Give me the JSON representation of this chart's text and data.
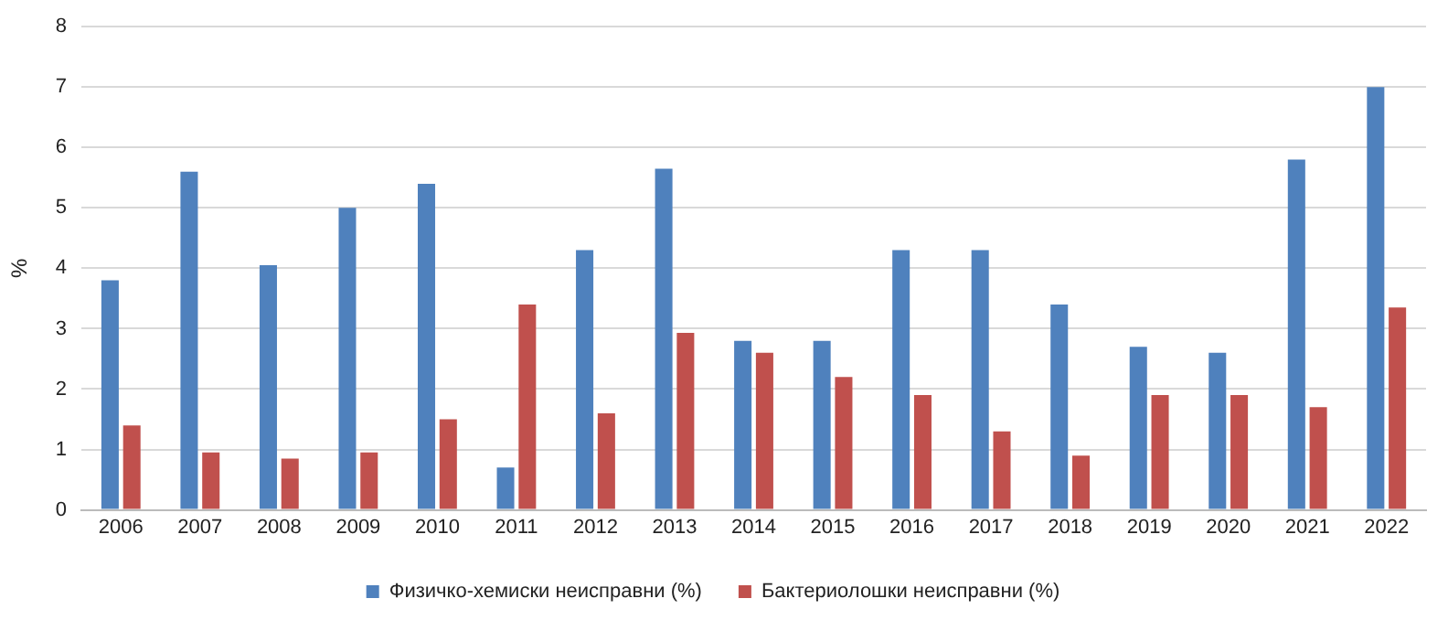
{
  "chart_data": {
    "type": "bar",
    "ylabel": "%",
    "categories": [
      "2006",
      "2007",
      "2008",
      "2009",
      "2010",
      "2011",
      "2012",
      "2013",
      "2014",
      "2015",
      "2016",
      "2017",
      "2018",
      "2019",
      "2020",
      "2021",
      "2022"
    ],
    "series": [
      {
        "name": "Физичко-хемиски неисправни (%)",
        "color": "#4f81bd",
        "values": [
          3.8,
          5.6,
          4.05,
          5.0,
          5.4,
          0.7,
          4.3,
          5.65,
          2.8,
          2.8,
          4.3,
          4.3,
          3.4,
          2.7,
          2.6,
          5.8,
          7.0
        ]
      },
      {
        "name": "Бактериолошки неисправни (%)",
        "color": "#c0504d",
        "values": [
          1.4,
          0.95,
          0.85,
          0.95,
          1.5,
          3.4,
          1.6,
          2.93,
          2.6,
          2.2,
          1.9,
          1.3,
          0.9,
          1.9,
          1.9,
          1.7,
          3.35
        ]
      }
    ],
    "ylim": [
      0,
      8
    ],
    "yticks": [
      0,
      1,
      2,
      3,
      4,
      5,
      6,
      7,
      8
    ],
    "grid": "y",
    "legend": "bottom"
  }
}
